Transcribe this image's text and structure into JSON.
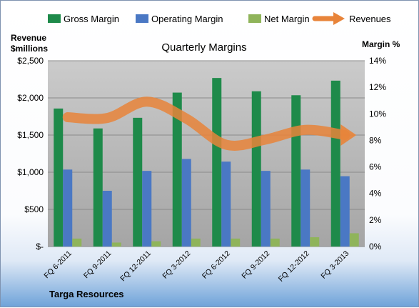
{
  "chart_data": {
    "type": "bar",
    "title": "Quarterly Margins",
    "ylabel_left": [
      "Revenue",
      "$millions"
    ],
    "ylabel_right": "Margin %",
    "footer": "Targa Resources",
    "categories": [
      "FQ 6-2011",
      "FQ 9-2011",
      "FQ 12-2011",
      "FQ 3-2012",
      "FQ 6-2012",
      "FQ 9-2012",
      "FQ 12-2012",
      "FQ 3-2013"
    ],
    "series": [
      {
        "name": "Gross Margin",
        "axis": "right",
        "color": "#1e8a4a",
        "values": [
          10.4,
          8.9,
          9.7,
          11.6,
          12.7,
          11.7,
          11.4,
          12.5
        ]
      },
      {
        "name": "Operating Margin",
        "axis": "right",
        "color": "#4a78c4",
        "values": [
          5.8,
          4.2,
          5.7,
          6.6,
          6.4,
          5.7,
          5.8,
          5.3
        ]
      },
      {
        "name": "Net Margin",
        "axis": "right",
        "color": "#8fb45a",
        "values": [
          0.6,
          0.3,
          0.4,
          0.6,
          0.6,
          0.6,
          0.7,
          1.0
        ]
      },
      {
        "name": "Revenues",
        "axis": "left",
        "type": "line",
        "color": "#e8843a",
        "values": [
          1740,
          1730,
          1950,
          1720,
          1370,
          1440,
          1570,
          1500
        ]
      }
    ],
    "ylim_left": [
      0,
      2500
    ],
    "yticks_left": [
      "$-",
      "$500",
      "$1,000",
      "$1,500",
      "$2,000",
      "$2,500"
    ],
    "ylim_right": [
      0,
      14
    ],
    "yticks_right": [
      "0%",
      "2%",
      "4%",
      "6%",
      "8%",
      "10%",
      "12%",
      "14%"
    ],
    "grid": true,
    "legend_position": "top"
  }
}
